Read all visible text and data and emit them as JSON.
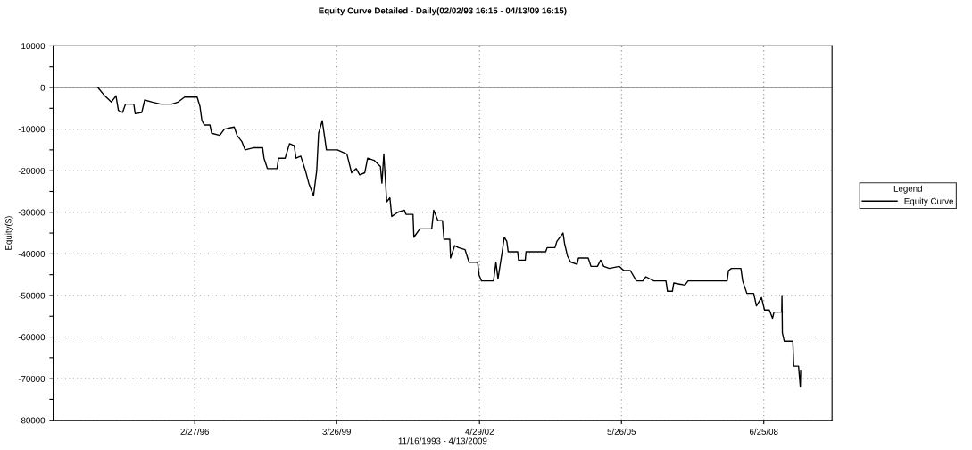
{
  "chart_data": {
    "type": "line",
    "title": "Equity Curve Detailed - Daily(02/02/93 16:15 - 04/13/09 16:15)",
    "xlabel": "11/16/1993 - 4/13/2009",
    "ylabel": "Equity($)",
    "legend_title": "Legend",
    "series": [
      {
        "name": "Equity Curve",
        "color": "#000000",
        "x": [
          "1994-01-22",
          "1994-03-17",
          "1994-05-08",
          "1994-06-14",
          "1994-07-03",
          "1994-08-05",
          "1994-08-28",
          "1994-11-02",
          "1994-11-13",
          "1995-01-04",
          "1995-01-27",
          "1995-03-28",
          "1995-06-03",
          "1995-08-28",
          "1995-10-18",
          "1995-12-09",
          "1996-03-17",
          "1996-04-08",
          "1996-04-24",
          "1996-05-13",
          "1996-06-26",
          "1996-07-10",
          "1996-09-12",
          "1996-10-18",
          "1997-01-04",
          "1997-01-27",
          "1997-03-06",
          "1997-04-01",
          "1997-06-03",
          "1997-08-17",
          "1997-08-28",
          "1997-09-24",
          "1997-12-09",
          "1997-12-21",
          "1998-02-11",
          "1998-03-18",
          "1998-04-24",
          "1998-05-08",
          "1998-06-15",
          "1998-07-22",
          "1998-08-17",
          "1998-09-24",
          "1998-10-19",
          "1998-11-03",
          "1998-12-02",
          "1998-12-21",
          "1999-01-04",
          "1999-02-23",
          "1999-04-01",
          "1999-06-15",
          "1999-07-22",
          "1999-08-28",
          "1999-09-24",
          "1999-11-03",
          "1999-11-26",
          "2000-01-16",
          "2000-03-06",
          "2000-03-18",
          "2000-04-02",
          "2000-04-25",
          "2000-05-20",
          "2000-06-04",
          "2000-07-22",
          "2000-09-12",
          "2000-09-24",
          "2000-11-19",
          "2000-11-26",
          "2001-01-12",
          "2001-04-16",
          "2001-05-02",
          "2001-06-04",
          "2001-07-10",
          "2001-07-22",
          "2001-09-06",
          "2001-09-12",
          "2001-10-15",
          "2001-11-14",
          "2002-01-05",
          "2002-02-05",
          "2002-04-14",
          "2002-04-25",
          "2002-05-15",
          "2002-08-18",
          "2002-09-06",
          "2002-09-22",
          "2002-10-23",
          "2002-11-11",
          "2002-12-01",
          "2002-12-12",
          "2003-02-25",
          "2003-03-04",
          "2003-04-26",
          "2003-05-02",
          "2003-10-05",
          "2003-10-16",
          "2003-12-17",
          "2004-01-01",
          "2004-02-19",
          "2004-03-02",
          "2004-03-25",
          "2004-04-19",
          "2004-06-09",
          "2004-06-20",
          "2004-09-05",
          "2004-09-27",
          "2004-11-17",
          "2004-12-12",
          "2005-01-06",
          "2005-02-19",
          "2005-05-08",
          "2005-06-14",
          "2005-08-04",
          "2005-09-21",
          "2005-11-11",
          "2005-12-05",
          "2006-02-06",
          "2006-05-13",
          "2006-05-25",
          "2006-07-03",
          "2006-07-14",
          "2006-10-10",
          "2006-11-04",
          "2007-09-09",
          "2007-09-20",
          "2007-10-14",
          "2007-12-27",
          "2008-01-10",
          "2008-02-12",
          "2008-04-06",
          "2008-04-28",
          "2008-06-07",
          "2008-07-01",
          "2008-08-08",
          "2008-09-02",
          "2008-09-14",
          "2008-11-14",
          "2008-11-16",
          "2008-11-19",
          "2008-12-04",
          "2009-02-10",
          "2009-02-17",
          "2009-03-27",
          "2009-04-10",
          "2009-04-13"
        ],
        "values": [
          0,
          -2000,
          -3500,
          -2000,
          -5500,
          -6000,
          -4000,
          -4000,
          -6300,
          -6000,
          -3000,
          -3500,
          -4000,
          -4000,
          -3500,
          -2300,
          -2300,
          -4500,
          -8000,
          -9000,
          -9000,
          -11000,
          -11500,
          -10000,
          -9500,
          -11500,
          -13000,
          -15000,
          -14500,
          -14500,
          -17000,
          -19500,
          -19500,
          -17000,
          -17000,
          -13500,
          -14000,
          -17000,
          -16500,
          -20000,
          -23000,
          -26000,
          -20000,
          -11000,
          -8000,
          -12000,
          -15000,
          -15000,
          -15000,
          -16000,
          -20500,
          -19500,
          -21000,
          -20500,
          -17000,
          -17500,
          -19000,
          -23000,
          -16000,
          -27500,
          -26500,
          -31000,
          -30000,
          -29500,
          -30500,
          -30500,
          -36000,
          -34000,
          -34000,
          -29500,
          -32000,
          -32000,
          -36500,
          -36500,
          -41000,
          -38000,
          -38500,
          -39000,
          -42000,
          -42000,
          -45000,
          -46500,
          -46500,
          -42000,
          -46000,
          -40000,
          -36000,
          -37000,
          -39500,
          -39500,
          -41500,
          -41500,
          -39500,
          -39500,
          -38500,
          -38500,
          -37000,
          -35000,
          -37500,
          -40500,
          -42000,
          -42500,
          -41000,
          -41000,
          -43000,
          -43000,
          -41500,
          -43000,
          -43500,
          -43000,
          -44000,
          -44000,
          -46500,
          -46500,
          -45500,
          -46500,
          -46500,
          -49000,
          -49000,
          -47000,
          -47500,
          -46500,
          -46500,
          -44000,
          -43500,
          -43500,
          -46500,
          -49500,
          -49500,
          -52500,
          -50500,
          -53500,
          -53500,
          -55500,
          -54000,
          -54000,
          -50000,
          -59000,
          -61000,
          -61000,
          -67000,
          -67000,
          -72000,
          -68000
        ]
      }
    ],
    "xlim": [
      "1993-02-02",
      "2009-12-17"
    ],
    "xticks": [
      {
        "value": "1996-02-27",
        "label": "2/27/96"
      },
      {
        "value": "1999-03-26",
        "label": "3/26/99"
      },
      {
        "value": "2002-04-29",
        "label": "4/29/02"
      },
      {
        "value": "2005-05-26",
        "label": "5/26/05"
      },
      {
        "value": "2008-06-25",
        "label": "6/25/08"
      }
    ],
    "ylim": [
      -80000,
      10000
    ],
    "yticks": [
      -80000,
      {
        "value": -75000,
        "label": null
      },
      -70000,
      {
        "value": -65000,
        "label": null
      },
      -60000,
      {
        "value": -55000,
        "label": null
      },
      -50000,
      {
        "value": -45000,
        "label": null
      },
      -40000,
      {
        "value": -35000,
        "label": null
      },
      -30000,
      {
        "value": -25000,
        "label": null
      },
      -20000,
      {
        "value": -15000,
        "label": null
      },
      -10000,
      {
        "value": -5000,
        "label": null
      },
      0,
      {
        "value": 5000,
        "label": null
      },
      10000
    ],
    "ref_lines": [
      {
        "axis": "y",
        "value": 0,
        "color": "#808080"
      }
    ],
    "grid": true,
    "line_style": "solid",
    "legend": "right"
  }
}
